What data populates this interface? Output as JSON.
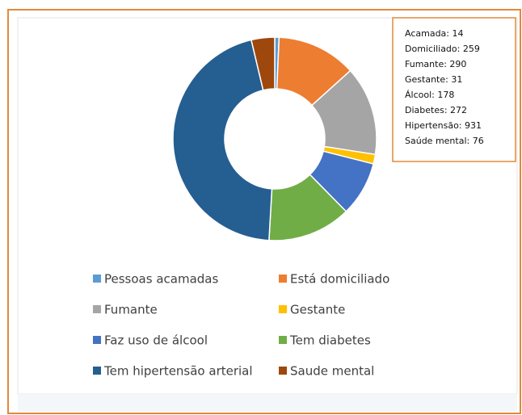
{
  "chart_data": {
    "type": "donut",
    "categories": [
      "Pessoas acamadas",
      "Está domiciliado",
      "Fumante",
      "Gestante",
      "Faz uso de álcool",
      "Tem diabetes",
      "Tem hipertensão arterial",
      "Saude mental"
    ],
    "values": [
      14,
      259,
      290,
      31,
      178,
      272,
      931,
      76
    ],
    "value_labels": [
      "Acamada: 14",
      "Domiciliado: 259",
      "Fumante: 290",
      "Gestante: 31",
      "Álcool: 178",
      "Diabetes: 272",
      "Hipertensão: 931",
      "Saúde mental: 76"
    ],
    "colors": [
      "#5b9bd5",
      "#ed7d31",
      "#a5a5a5",
      "#ffc000",
      "#4472c4",
      "#70ad47",
      "#255e91",
      "#9e480e"
    ],
    "legend": "bottom"
  }
}
